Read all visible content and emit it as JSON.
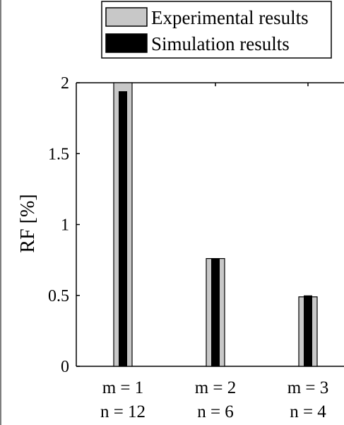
{
  "chart_data": {
    "type": "bar",
    "ylabel": "RF [%]",
    "xlabel": "",
    "title": "",
    "ylim": [
      0,
      2
    ],
    "yticks": [
      0,
      0.5,
      1,
      1.5,
      2
    ],
    "ytick_labels": [
      "0",
      "0.5",
      "1",
      "1.5",
      "2"
    ],
    "categories": [
      {
        "line1": "m = 1",
        "line2": "n = 12"
      },
      {
        "line1": "m = 2",
        "line2": "n = 6"
      },
      {
        "line1": "m = 3",
        "line2": "n = 4"
      }
    ],
    "series": [
      {
        "name": "Experimental results",
        "values": [
          2.0,
          0.76,
          0.49
        ],
        "color": "#c8c8c8"
      },
      {
        "name": "Simulation results",
        "values": [
          1.94,
          0.76,
          0.5
        ],
        "color": "#000000"
      }
    ],
    "legend_position": "top-right",
    "grid": false
  }
}
